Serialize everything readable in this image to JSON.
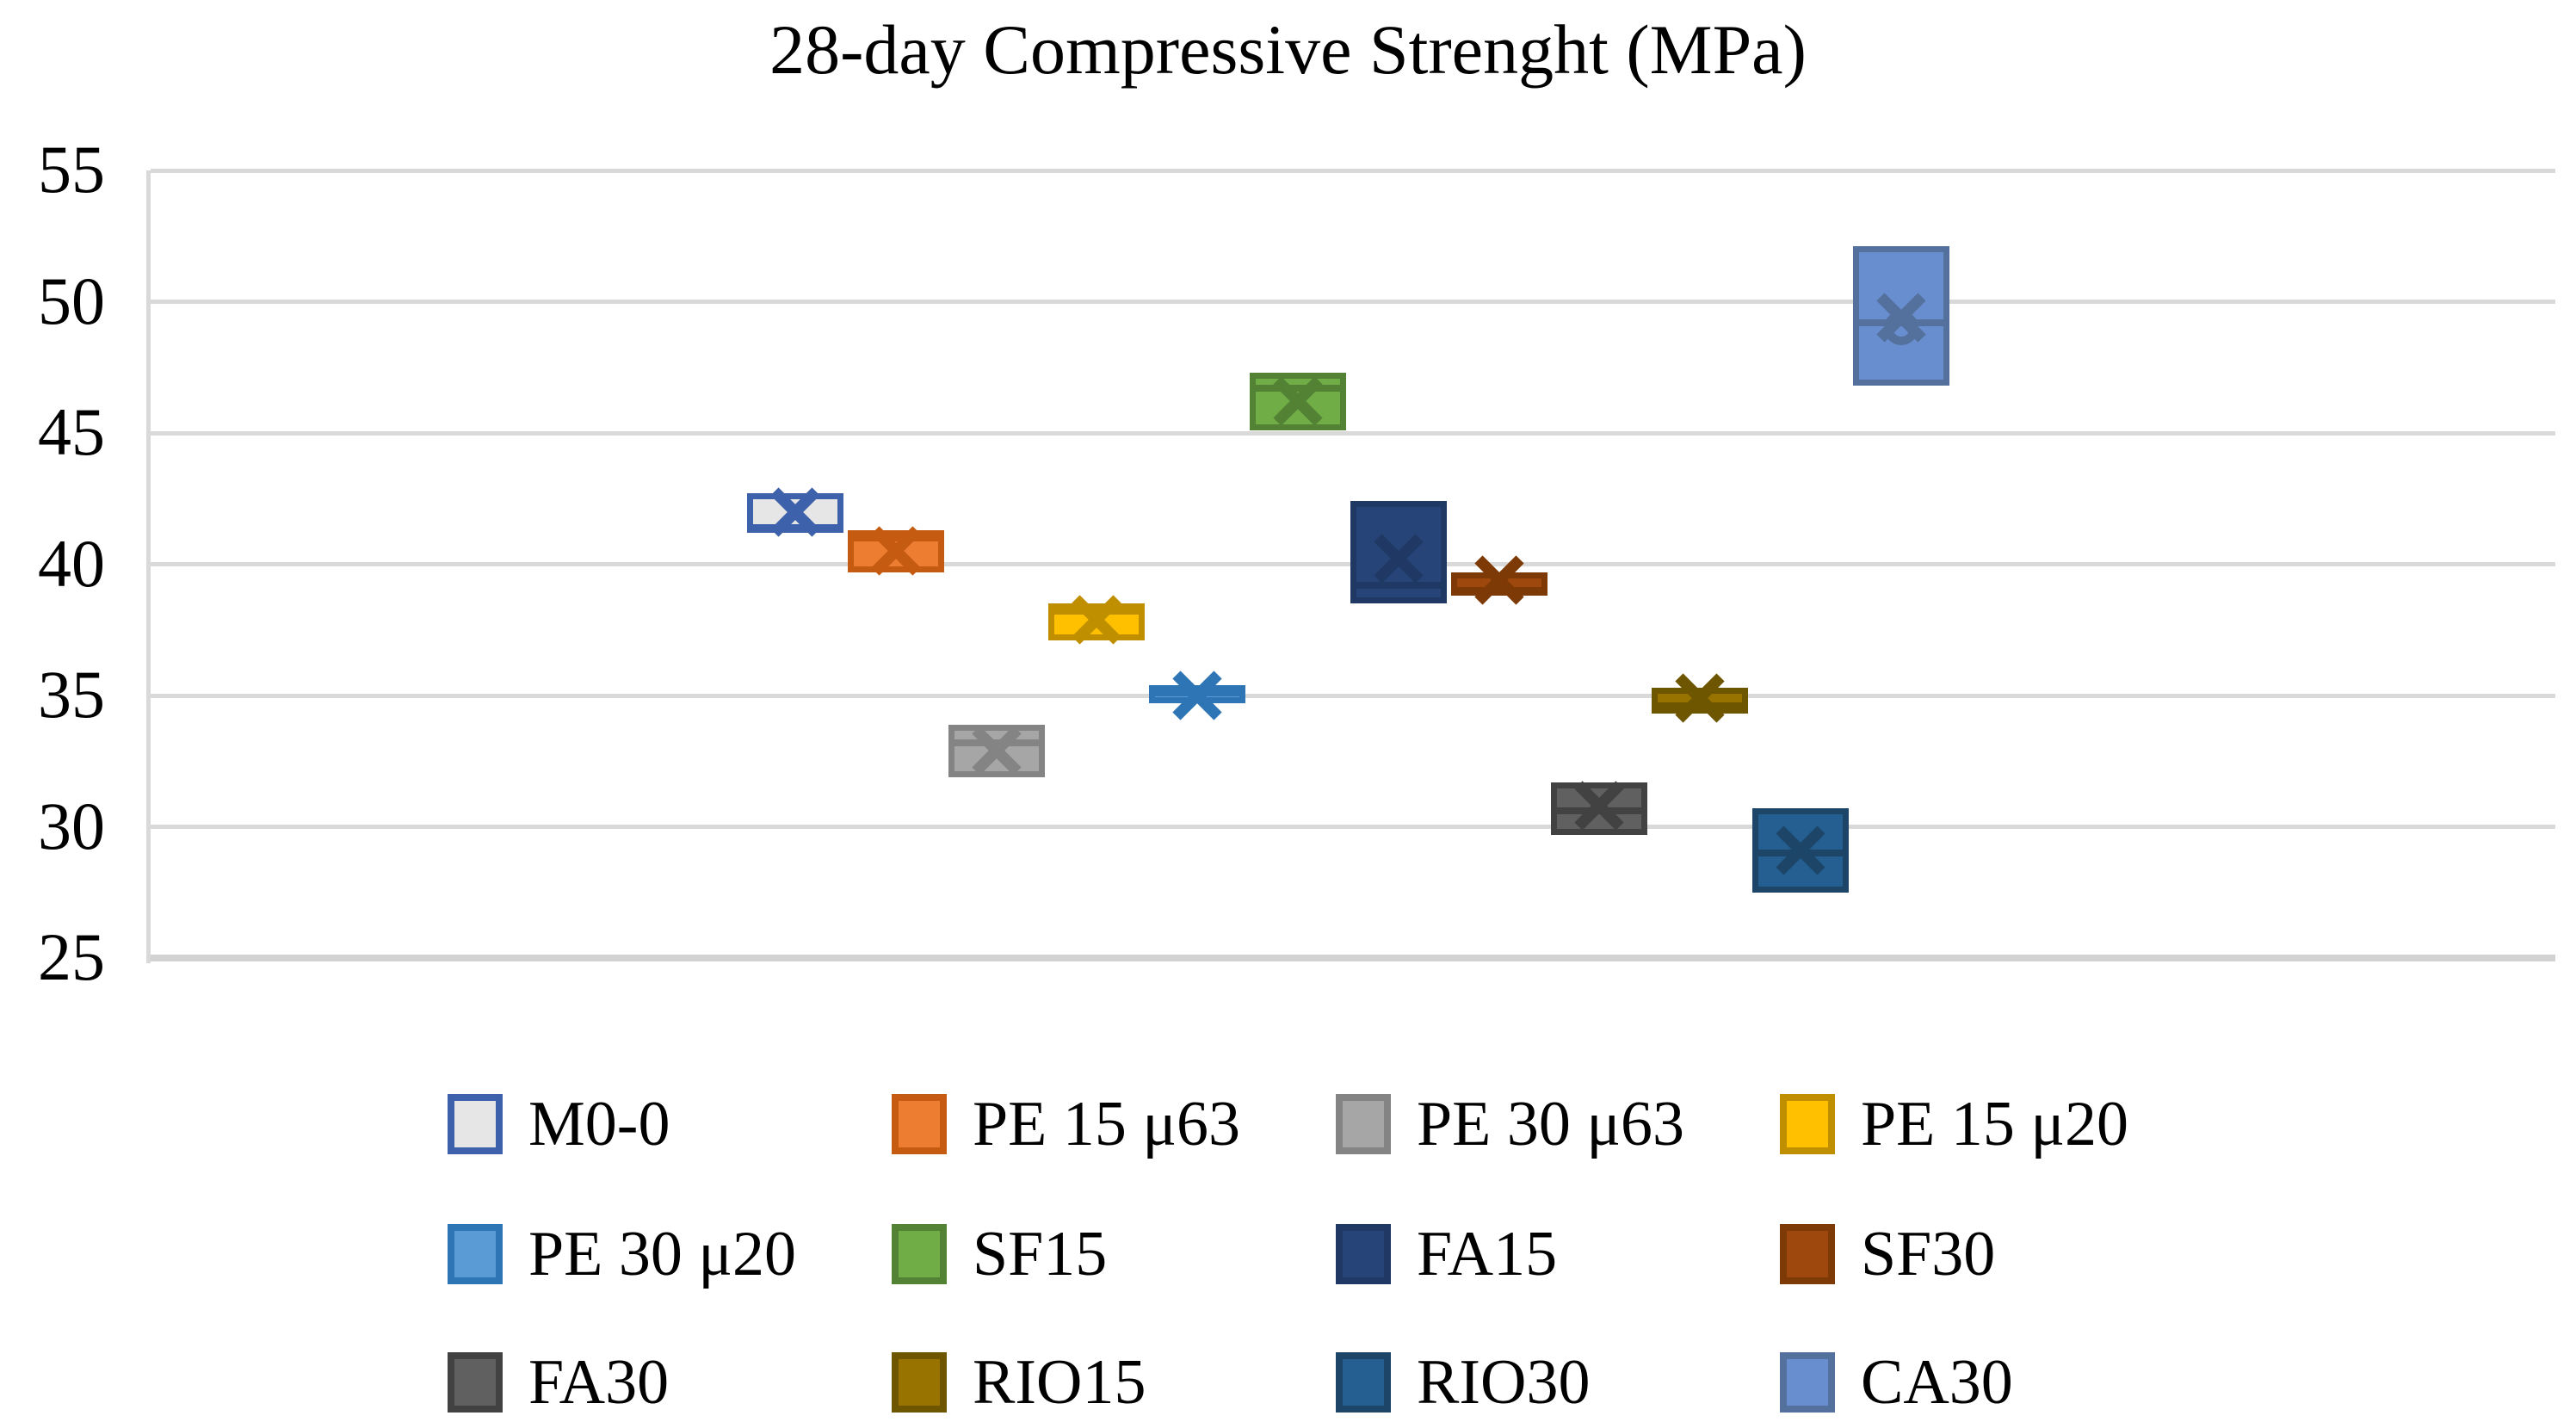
{
  "page": {
    "background": "#FFFFFF"
  },
  "chart_data": {
    "type": "box",
    "title": "28-day Compressive Strenght (MPa)",
    "xlabel": "",
    "ylabel": "",
    "ylim": [
      25,
      55
    ],
    "yticks": [
      55,
      50,
      45,
      40,
      35,
      30,
      25
    ],
    "grid": true,
    "gridline_color": "#D9D9D9",
    "legend_position": "bottom",
    "legend_columns": 4,
    "series": [
      {
        "name": "M0-0",
        "fill": "#E7E6E6",
        "border": "#3D61AA",
        "q1": 41.2,
        "q3": 42.7,
        "median": 41.4,
        "mean": 42.0
      },
      {
        "name": "PE 15 μ63",
        "fill": "#ED7D31",
        "border": "#C55A11",
        "q1": 39.7,
        "q3": 41.3,
        "median": 41.0,
        "mean": 40.5
      },
      {
        "name": "PE 30 μ63",
        "fill": "#A6A6A6",
        "border": "#848484",
        "q1": 31.9,
        "q3": 33.9,
        "median": 33.2,
        "mean": 32.9
      },
      {
        "name": "PE 15 μ20",
        "fill": "#FFC000",
        "border": "#BF8F00",
        "q1": 37.1,
        "q3": 38.5,
        "median": 38.2,
        "mean": 37.9
      },
      {
        "name": "PE 30 μ20",
        "fill": "#5B9BD5",
        "border": "#2E75B6",
        "q1": 34.7,
        "q3": 35.4,
        "median": 35.1,
        "mean": 35.0
      },
      {
        "name": "SF15",
        "fill": "#70AD47",
        "border": "#548235",
        "q1": 45.1,
        "q3": 47.3,
        "median": 46.7,
        "mean": 46.2
      },
      {
        "name": "FA15",
        "fill": "#264478",
        "border": "#1F3864",
        "q1": 38.5,
        "q3": 42.4,
        "median": 39.2,
        "mean": 40.2
      },
      {
        "name": "SF30",
        "fill": "#9E480E",
        "border": "#7D3A06",
        "q1": 38.8,
        "q3": 39.7,
        "median": 39.0,
        "mean": 39.4
      },
      {
        "name": "FA30",
        "fill": "#606060",
        "border": "#424242",
        "q1": 29.7,
        "q3": 31.7,
        "median": 30.6,
        "mean": 30.8
      },
      {
        "name": "RIO15",
        "fill": "#997300",
        "border": "#6E5600",
        "q1": 34.3,
        "q3": 35.3,
        "median": 34.6,
        "mean": 34.9
      },
      {
        "name": "RIO30",
        "fill": "#255E91",
        "border": "#1C4568",
        "q1": 27.5,
        "q3": 30.7,
        "median": 29.0,
        "mean": 29.1
      },
      {
        "name": "CA30",
        "fill": "#698ED0",
        "border": "#54719E",
        "q1": 46.8,
        "q3": 52.1,
        "median": 49.2,
        "mean": 49.4,
        "outlier": 49.0
      }
    ]
  }
}
